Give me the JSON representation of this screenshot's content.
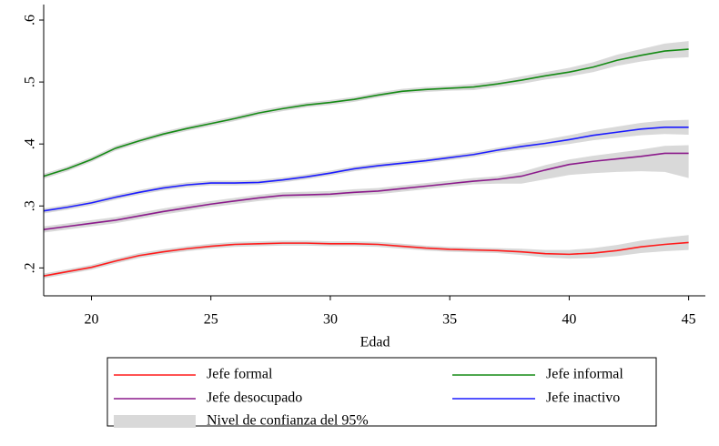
{
  "chart_data": {
    "type": "line",
    "xlabel": "Edad",
    "x": [
      18,
      19,
      20,
      21,
      22,
      23,
      24,
      25,
      26,
      27,
      28,
      29,
      30,
      31,
      32,
      33,
      34,
      35,
      36,
      37,
      38,
      39,
      40,
      41,
      42,
      43,
      44,
      45
    ],
    "xlim": [
      18,
      45.7
    ],
    "xticks": [
      20,
      25,
      30,
      35,
      40,
      45
    ],
    "ylim": [
      0.155,
      0.625
    ],
    "yticks": [
      {
        "value": 0.2,
        "label": ".2"
      },
      {
        "value": 0.3,
        "label": ".3"
      },
      {
        "value": 0.4,
        "label": ".4"
      },
      {
        "value": 0.5,
        "label": ".5"
      },
      {
        "value": 0.6,
        "label": ".6"
      }
    ],
    "grid": false,
    "band_label": "Nivel de confianza del 95%",
    "band_color": "#d9d9d9",
    "series": [
      {
        "name": "Jefe formal",
        "color": "#ff1a1a",
        "values": [
          0.187,
          0.194,
          0.201,
          0.211,
          0.22,
          0.226,
          0.231,
          0.235,
          0.238,
          0.239,
          0.24,
          0.24,
          0.239,
          0.239,
          0.238,
          0.235,
          0.232,
          0.23,
          0.229,
          0.228,
          0.226,
          0.223,
          0.222,
          0.224,
          0.228,
          0.234,
          0.238,
          0.241
        ],
        "lower": [
          0.183,
          0.19,
          0.197,
          0.207,
          0.216,
          0.222,
          0.227,
          0.231,
          0.234,
          0.235,
          0.236,
          0.236,
          0.235,
          0.235,
          0.234,
          0.231,
          0.228,
          0.226,
          0.225,
          0.224,
          0.221,
          0.217,
          0.215,
          0.216,
          0.219,
          0.224,
          0.227,
          0.229
        ],
        "upper": [
          0.191,
          0.198,
          0.205,
          0.215,
          0.224,
          0.23,
          0.235,
          0.239,
          0.242,
          0.243,
          0.244,
          0.244,
          0.243,
          0.243,
          0.242,
          0.239,
          0.236,
          0.234,
          0.233,
          0.232,
          0.231,
          0.229,
          0.229,
          0.232,
          0.237,
          0.244,
          0.249,
          0.253
        ]
      },
      {
        "name": "Jefe informal",
        "color": "#148a14",
        "values": [
          0.348,
          0.36,
          0.375,
          0.393,
          0.405,
          0.416,
          0.425,
          0.433,
          0.441,
          0.45,
          0.457,
          0.463,
          0.467,
          0.472,
          0.479,
          0.485,
          0.488,
          0.49,
          0.492,
          0.497,
          0.503,
          0.51,
          0.516,
          0.524,
          0.535,
          0.543,
          0.55,
          0.553
        ],
        "lower": [
          0.344,
          0.356,
          0.371,
          0.389,
          0.401,
          0.412,
          0.421,
          0.429,
          0.437,
          0.446,
          0.453,
          0.459,
          0.463,
          0.468,
          0.475,
          0.481,
          0.484,
          0.486,
          0.487,
          0.492,
          0.497,
          0.504,
          0.509,
          0.516,
          0.526,
          0.533,
          0.538,
          0.54
        ],
        "upper": [
          0.352,
          0.364,
          0.379,
          0.397,
          0.409,
          0.42,
          0.429,
          0.437,
          0.445,
          0.454,
          0.461,
          0.467,
          0.471,
          0.476,
          0.483,
          0.489,
          0.492,
          0.494,
          0.497,
          0.502,
          0.509,
          0.516,
          0.523,
          0.532,
          0.544,
          0.553,
          0.562,
          0.566
        ]
      },
      {
        "name": "Jefe desocupado",
        "color": "#8b1a8b",
        "values": [
          0.262,
          0.267,
          0.272,
          0.277,
          0.284,
          0.291,
          0.297,
          0.303,
          0.308,
          0.313,
          0.317,
          0.318,
          0.319,
          0.322,
          0.324,
          0.328,
          0.332,
          0.336,
          0.34,
          0.343,
          0.348,
          0.358,
          0.367,
          0.372,
          0.376,
          0.38,
          0.385,
          0.385
        ],
        "lower": [
          0.257,
          0.262,
          0.267,
          0.272,
          0.279,
          0.286,
          0.292,
          0.298,
          0.303,
          0.308,
          0.312,
          0.313,
          0.314,
          0.317,
          0.319,
          0.323,
          0.327,
          0.331,
          0.335,
          0.336,
          0.336,
          0.343,
          0.35,
          0.353,
          0.355,
          0.356,
          0.355,
          0.345
        ],
        "upper": [
          0.267,
          0.272,
          0.277,
          0.282,
          0.289,
          0.296,
          0.302,
          0.308,
          0.313,
          0.318,
          0.322,
          0.323,
          0.324,
          0.327,
          0.329,
          0.333,
          0.337,
          0.341,
          0.345,
          0.348,
          0.355,
          0.366,
          0.375,
          0.381,
          0.386,
          0.391,
          0.397,
          0.398
        ]
      },
      {
        "name": "Jefe inactivo",
        "color": "#1a1aff",
        "values": [
          0.292,
          0.298,
          0.305,
          0.314,
          0.322,
          0.329,
          0.334,
          0.337,
          0.337,
          0.338,
          0.342,
          0.347,
          0.353,
          0.36,
          0.365,
          0.369,
          0.373,
          0.378,
          0.383,
          0.39,
          0.396,
          0.401,
          0.407,
          0.414,
          0.419,
          0.424,
          0.427,
          0.427
        ],
        "lower": [
          0.288,
          0.294,
          0.301,
          0.31,
          0.318,
          0.325,
          0.33,
          0.333,
          0.333,
          0.334,
          0.338,
          0.343,
          0.349,
          0.356,
          0.361,
          0.365,
          0.369,
          0.374,
          0.379,
          0.386,
          0.391,
          0.395,
          0.4,
          0.406,
          0.41,
          0.414,
          0.416,
          0.415
        ],
        "upper": [
          0.296,
          0.302,
          0.309,
          0.318,
          0.326,
          0.333,
          0.338,
          0.341,
          0.341,
          0.342,
          0.346,
          0.351,
          0.357,
          0.364,
          0.369,
          0.373,
          0.377,
          0.382,
          0.387,
          0.394,
          0.401,
          0.407,
          0.414,
          0.422,
          0.428,
          0.434,
          0.438,
          0.439
        ]
      }
    ]
  }
}
